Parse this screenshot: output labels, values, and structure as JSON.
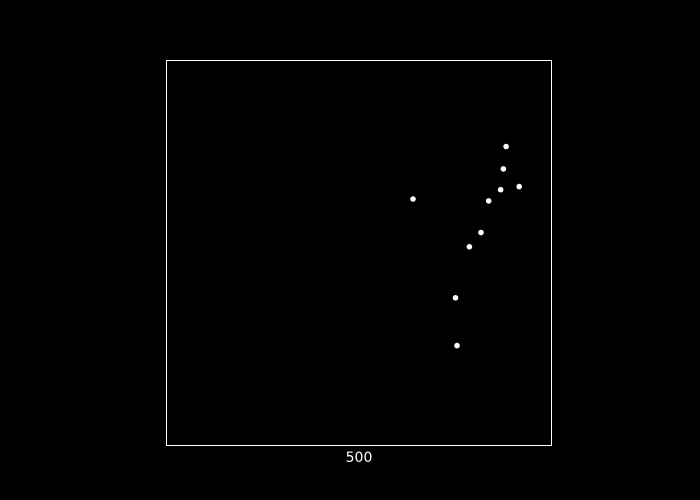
{
  "chart_data": {
    "type": "scatter",
    "title": "",
    "xlabel": "500",
    "ylabel": "",
    "xlim": [
      0,
      1
    ],
    "ylim": [
      0,
      1
    ],
    "grid": false,
    "legend": "none",
    "series": [
      {
        "name": "points",
        "x": [
          0.64,
          0.75,
          0.754,
          0.786,
          0.816,
          0.867,
          0.836,
          0.874,
          0.881,
          0.915
        ],
        "y": [
          0.64,
          0.384,
          0.26,
          0.516,
          0.553,
          0.664,
          0.635,
          0.718,
          0.776,
          0.672
        ]
      }
    ],
    "colors": {
      "background": "#000000",
      "axes": "#ffffff",
      "points": "#ffffff",
      "text": "#ffffff"
    }
  }
}
